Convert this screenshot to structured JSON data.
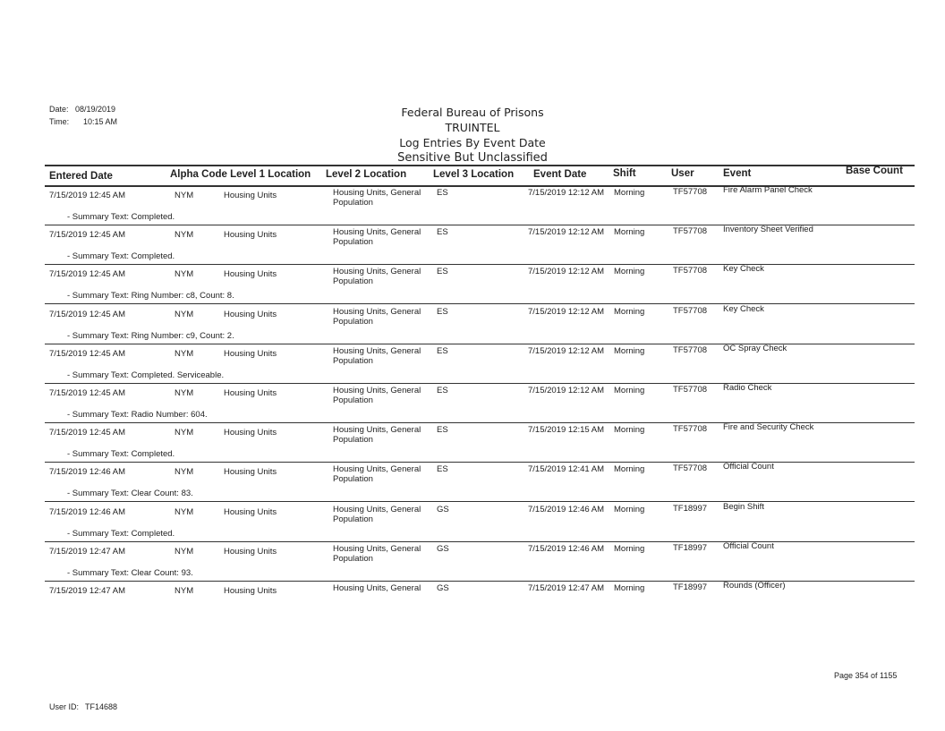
{
  "header": {
    "date_label": "Date:",
    "date": "08/19/2019",
    "time_label": "Time:",
    "time": "10:15 AM",
    "title_lines": [
      "Federal Bureau of Prisons",
      "TRUINTEL",
      "Log Entries By Event Date",
      "Sensitive But Unclassified"
    ]
  },
  "columns": [
    "Entered Date",
    "Alpha Code Level 1 Location",
    "Level 2 Location",
    "Level 3 Location",
    "Event Date",
    "Shift",
    "User",
    "Event",
    "Base Count"
  ],
  "rows": [
    {
      "entered": "7/15/2019 12:45 AM",
      "alpha": "NYM",
      "l1": "Housing Units",
      "l2a": "Housing Units, General",
      "l2b": "Population",
      "l3": "ES",
      "event_date": "7/15/2019 12:12 AM",
      "shift": "Morning",
      "user": "TF57708",
      "event": "Fire Alarm Panel Check",
      "summary": "- Summary Text: Completed."
    },
    {
      "entered": "7/15/2019 12:45 AM",
      "alpha": "NYM",
      "l1": "Housing Units",
      "l2a": "Housing Units, General",
      "l2b": "Population",
      "l3": "ES",
      "event_date": "7/15/2019 12:12 AM",
      "shift": "Morning",
      "user": "TF57708",
      "event": "Inventory Sheet Verified",
      "summary": "- Summary Text: Completed."
    },
    {
      "entered": "7/15/2019 12:45 AM",
      "alpha": "NYM",
      "l1": "Housing Units",
      "l2a": "Housing Units, General",
      "l2b": "Population",
      "l3": "ES",
      "event_date": "7/15/2019 12:12 AM",
      "shift": "Morning",
      "user": "TF57708",
      "event": "Key Check",
      "summary": "- Summary Text: Ring Number: c8, Count: 8."
    },
    {
      "entered": "7/15/2019 12:45 AM",
      "alpha": "NYM",
      "l1": "Housing Units",
      "l2a": "Housing Units, General",
      "l2b": "Population",
      "l3": "ES",
      "event_date": "7/15/2019 12:12 AM",
      "shift": "Morning",
      "user": "TF57708",
      "event": "Key Check",
      "summary": "- Summary Text: Ring Number: c9, Count: 2."
    },
    {
      "entered": "7/15/2019 12:45 AM",
      "alpha": "NYM",
      "l1": "Housing Units",
      "l2a": "Housing Units, General",
      "l2b": "Population",
      "l3": "ES",
      "event_date": "7/15/2019 12:12 AM",
      "shift": "Morning",
      "user": "TF57708",
      "event": "OC Spray Check",
      "summary": "- Summary Text: Completed. Serviceable."
    },
    {
      "entered": "7/15/2019 12:45 AM",
      "alpha": "NYM",
      "l1": "Housing Units",
      "l2a": "Housing Units, General",
      "l2b": "Population",
      "l3": "ES",
      "event_date": "7/15/2019 12:12 AM",
      "shift": "Morning",
      "user": "TF57708",
      "event": "Radio Check",
      "summary": "- Summary Text: Radio Number: 604."
    },
    {
      "entered": "7/15/2019 12:45 AM",
      "alpha": "NYM",
      "l1": "Housing Units",
      "l2a": "Housing Units, General",
      "l2b": "Population",
      "l3": "ES",
      "event_date": "7/15/2019 12:15 AM",
      "shift": "Morning",
      "user": "TF57708",
      "event": "Fire and Security Check",
      "summary": "- Summary Text: Completed."
    },
    {
      "entered": "7/15/2019 12:46 AM",
      "alpha": "NYM",
      "l1": "Housing Units",
      "l2a": "Housing Units, General",
      "l2b": "Population",
      "l3": "ES",
      "event_date": "7/15/2019 12:41 AM",
      "shift": "Morning",
      "user": "TF57708",
      "event": "Official Count",
      "summary": "- Summary Text: Clear Count: 83."
    },
    {
      "entered": "7/15/2019 12:46 AM",
      "alpha": "NYM",
      "l1": "Housing Units",
      "l2a": "Housing Units, General",
      "l2b": "Population",
      "l3": "GS",
      "event_date": "7/15/2019 12:46 AM",
      "shift": "Morning",
      "user": "TF18997",
      "event": "Begin Shift",
      "summary": "- Summary Text: Completed."
    },
    {
      "entered": "7/15/2019 12:47 AM",
      "alpha": "NYM",
      "l1": "Housing Units",
      "l2a": "Housing Units, General",
      "l2b": "Population",
      "l3": "GS",
      "event_date": "7/15/2019 12:46 AM",
      "shift": "Morning",
      "user": "TF18997",
      "event": "Official Count",
      "summary": "- Summary Text: Clear Count: 93."
    },
    {
      "entered": "7/15/2019 12:47 AM",
      "alpha": "NYM",
      "l1": "Housing Units",
      "l2a": "Housing Units, General",
      "l2b": "",
      "l3": "GS",
      "event_date": "7/15/2019 12:47 AM",
      "shift": "Morning",
      "user": "TF18997",
      "event": "Rounds (Officer)",
      "summary": ""
    }
  ],
  "footer": {
    "user_label": "User ID:",
    "user_id": "TF14688",
    "page": "Page 354 of 1155"
  }
}
